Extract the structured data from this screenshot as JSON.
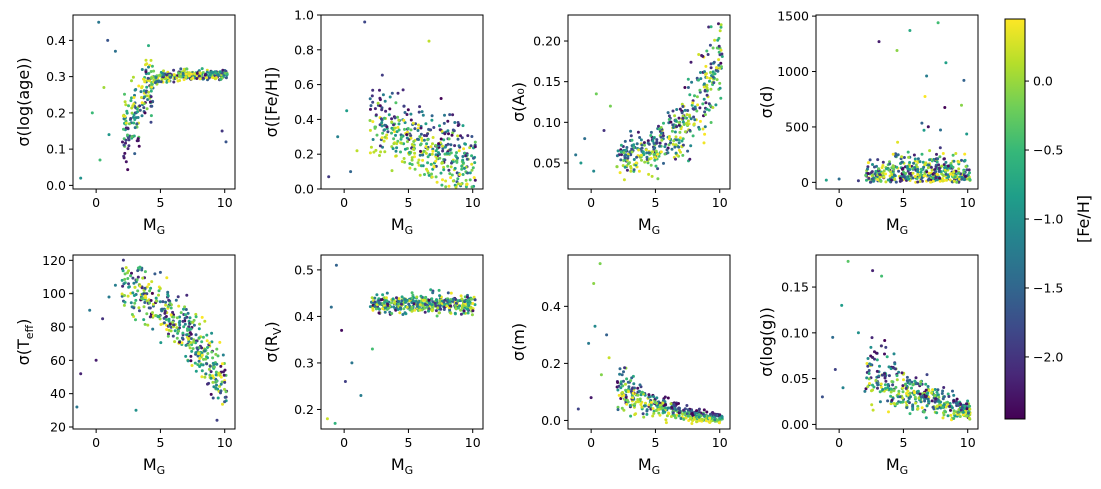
{
  "colorbar": {
    "label": "[Fe/H]",
    "range": [
      -2.45,
      0.45
    ],
    "ticks": [
      0.0,
      -0.5,
      -1.0,
      -1.5,
      -2.0
    ],
    "tick_labels": [
      "0.0",
      "−0.5",
      "−1.0",
      "−1.5",
      "−2.0"
    ],
    "colormap_stops": [
      "#440154",
      "#482878",
      "#3e4989",
      "#31688e",
      "#26828e",
      "#1f9e89",
      "#35b779",
      "#6ece58",
      "#b5de2b",
      "#fde725"
    ]
  },
  "chart_data": [
    {
      "type": "scatter",
      "id": "age",
      "xlabel": "M_G",
      "ylabel": "σ(log(age))",
      "xlim": [
        -1.8,
        10.8
      ],
      "ylim": [
        -0.01,
        0.47
      ],
      "xticks": [
        0,
        5,
        10
      ],
      "xtick_labels": [
        "0",
        "5",
        "10"
      ],
      "yticks": [
        0.0,
        0.1,
        0.2,
        0.3,
        0.4
      ],
      "ytick_labels": [
        "0.0",
        "0.1",
        "0.2",
        "0.3",
        "0.4"
      ],
      "trend": [
        [
          2.0,
          0.15
        ],
        [
          3.0,
          0.2
        ],
        [
          4.0,
          0.28
        ],
        [
          5.0,
          0.3
        ],
        [
          7.0,
          0.305
        ],
        [
          9.5,
          0.305
        ]
      ],
      "outliers": [
        [
          0.2,
          0.45
        ],
        [
          0.9,
          0.4
        ],
        [
          1.5,
          0.37
        ],
        [
          0.3,
          0.07
        ],
        [
          1.0,
          0.14
        ],
        [
          -1.2,
          0.02
        ],
        [
          -0.3,
          0.2
        ],
        [
          9.8,
          0.15
        ],
        [
          10.1,
          0.12
        ],
        [
          0.6,
          0.27
        ]
      ]
    },
    {
      "type": "scatter",
      "id": "feh",
      "xlabel": "M_G",
      "ylabel": "σ([Fe/H])",
      "xlim": [
        -1.8,
        10.8
      ],
      "ylim": [
        0.0,
        1.0
      ],
      "xticks": [
        0,
        5,
        10
      ],
      "xtick_labels": [
        "0",
        "5",
        "10"
      ],
      "yticks": [
        0.0,
        0.2,
        0.4,
        0.6,
        0.8,
        1.0
      ],
      "ytick_labels": [
        "0.0",
        "0.2",
        "0.4",
        "0.6",
        "0.8",
        "1.0"
      ],
      "trend": [
        [
          2.5,
          0.4
        ],
        [
          4.0,
          0.35
        ],
        [
          6.0,
          0.28
        ],
        [
          8.0,
          0.2
        ],
        [
          10.0,
          0.15
        ]
      ],
      "outliers": [
        [
          1.6,
          0.96
        ],
        [
          0.2,
          0.45
        ],
        [
          -0.5,
          0.3
        ],
        [
          0.5,
          0.1
        ],
        [
          -1.2,
          0.07
        ],
        [
          1.0,
          0.22
        ],
        [
          10.2,
          0.05
        ],
        [
          6.6,
          0.85
        ]
      ]
    },
    {
      "type": "scatter",
      "id": "a0",
      "xlabel": "M_G",
      "ylabel": "σ(A₀)",
      "xlim": [
        -1.8,
        10.8
      ],
      "ylim": [
        0.018,
        0.232
      ],
      "xticks": [
        0,
        5,
        10
      ],
      "xtick_labels": [
        "0",
        "5",
        "10"
      ],
      "yticks": [
        0.05,
        0.1,
        0.15,
        0.2
      ],
      "ytick_labels": [
        "0.05",
        "0.10",
        "0.15",
        "0.20"
      ],
      "trend": [
        [
          2.5,
          0.055
        ],
        [
          4.0,
          0.06
        ],
        [
          5.0,
          0.067
        ],
        [
          6.0,
          0.078
        ],
        [
          7.0,
          0.095
        ],
        [
          8.0,
          0.12
        ],
        [
          9.0,
          0.15
        ],
        [
          10.0,
          0.18
        ]
      ],
      "outliers": [
        [
          0.4,
          0.135
        ],
        [
          -0.5,
          0.08
        ],
        [
          -0.8,
          0.05
        ],
        [
          0.2,
          0.04
        ],
        [
          -1.2,
          0.06
        ],
        [
          1.0,
          0.09
        ],
        [
          1.5,
          0.12
        ]
      ]
    },
    {
      "type": "scatter",
      "id": "dist",
      "xlabel": "M_G",
      "ylabel": "σ(d)",
      "xlim": [
        -1.8,
        10.8
      ],
      "ylim": [
        -60,
        1510
      ],
      "xticks": [
        0,
        5,
        10
      ],
      "xtick_labels": [
        "0",
        "5",
        "10"
      ],
      "yticks": [
        0,
        500,
        1000,
        1500
      ],
      "ytick_labels": [
        "0",
        "500",
        "1000",
        "1500"
      ],
      "trend": [
        [
          2.0,
          10
        ],
        [
          4.0,
          60
        ],
        [
          6.0,
          80
        ],
        [
          8.0,
          90
        ],
        [
          10.0,
          60
        ]
      ],
      "outliers": [
        [
          5.5,
          1370
        ],
        [
          7.7,
          1440
        ],
        [
          3.1,
          1270
        ],
        [
          4.5,
          1190
        ],
        [
          8.3,
          1080
        ],
        [
          9.7,
          920
        ],
        [
          0.0,
          30
        ],
        [
          -1.0,
          20
        ],
        [
          1.5,
          15
        ],
        [
          6.8,
          960
        ]
      ]
    },
    {
      "type": "scatter",
      "id": "teff",
      "xlabel": "M_G",
      "ylabel": "σ(T_eff)",
      "xlim": [
        -1.8,
        10.8
      ],
      "ylim": [
        18.8,
        123.2
      ],
      "xticks": [
        0,
        5,
        10
      ],
      "xtick_labels": [
        "0",
        "5",
        "10"
      ],
      "yticks": [
        20,
        40,
        60,
        80,
        100,
        120
      ],
      "ytick_labels": [
        "20",
        "40",
        "60",
        "80",
        "100",
        "120"
      ],
      "trend": [
        [
          2.0,
          108
        ],
        [
          3.0,
          103
        ],
        [
          4.0,
          97
        ],
        [
          5.0,
          92
        ],
        [
          6.0,
          85
        ],
        [
          7.0,
          78
        ],
        [
          8.0,
          68
        ],
        [
          9.0,
          58
        ],
        [
          10.0,
          45
        ]
      ],
      "outliers": [
        [
          -1.5,
          32
        ],
        [
          -1.2,
          52
        ],
        [
          -0.5,
          90
        ],
        [
          0.0,
          60
        ],
        [
          1.5,
          105
        ],
        [
          3.1,
          30
        ],
        [
          9.4,
          24
        ],
        [
          0.5,
          85
        ],
        [
          1.0,
          98
        ]
      ]
    },
    {
      "type": "scatter",
      "id": "rv",
      "xlabel": "M_G",
      "ylabel": "σ(R_V)",
      "xlim": [
        -1.8,
        10.8
      ],
      "ylim": [
        0.158,
        0.532
      ],
      "xticks": [
        0,
        5,
        10
      ],
      "xtick_labels": [
        "0",
        "5",
        "10"
      ],
      "yticks": [
        0.2,
        0.3,
        0.4,
        0.5
      ],
      "ytick_labels": [
        "0.2",
        "0.3",
        "0.4",
        "0.5"
      ],
      "trend": [
        [
          2.5,
          0.425
        ],
        [
          5.0,
          0.428
        ],
        [
          7.5,
          0.428
        ],
        [
          10.0,
          0.425
        ]
      ],
      "outliers": [
        [
          -0.6,
          0.51
        ],
        [
          -1.3,
          0.18
        ],
        [
          -0.7,
          0.17
        ],
        [
          1.3,
          0.23
        ],
        [
          -0.2,
          0.37
        ],
        [
          0.6,
          0.3
        ],
        [
          2.2,
          0.33
        ],
        [
          -1.0,
          0.42
        ],
        [
          0.1,
          0.26
        ]
      ]
    },
    {
      "type": "scatter",
      "id": "mass",
      "xlabel": "M_G",
      "ylabel": "σ(m)",
      "xlim": [
        -1.8,
        10.8
      ],
      "ylim": [
        -0.03,
        0.58
      ],
      "xticks": [
        0,
        5,
        10
      ],
      "xtick_labels": [
        "0",
        "5",
        "10"
      ],
      "yticks": [
        0.0,
        0.2,
        0.4
      ],
      "ytick_labels": [
        "0.0",
        "0.2",
        "0.4"
      ],
      "trend": [
        [
          2.5,
          0.11
        ],
        [
          3.5,
          0.08
        ],
        [
          5.0,
          0.055
        ],
        [
          6.5,
          0.035
        ],
        [
          8.0,
          0.02
        ],
        [
          10.0,
          0.01
        ]
      ],
      "outliers": [
        [
          0.7,
          0.55
        ],
        [
          0.2,
          0.48
        ],
        [
          0.3,
          0.33
        ],
        [
          -0.2,
          0.27
        ],
        [
          1.2,
          0.3
        ],
        [
          0.0,
          0.08
        ],
        [
          -1.0,
          0.04
        ],
        [
          1.4,
          0.22
        ],
        [
          0.8,
          0.16
        ]
      ]
    },
    {
      "type": "scatter",
      "id": "logg",
      "xlabel": "M_G",
      "ylabel": "σ(log(g))",
      "xlim": [
        -1.8,
        10.8
      ],
      "ylim": [
        -0.005,
        0.185
      ],
      "xticks": [
        0,
        5,
        10
      ],
      "xtick_labels": [
        "0",
        "5",
        "10"
      ],
      "yticks": [
        0.0,
        0.05,
        0.1,
        0.15
      ],
      "ytick_labels": [
        "0.00",
        "0.05",
        "0.10",
        "0.15"
      ],
      "trend": [
        [
          2.5,
          0.055
        ],
        [
          4.0,
          0.045
        ],
        [
          5.0,
          0.038
        ],
        [
          6.5,
          0.03
        ],
        [
          8.0,
          0.025
        ],
        [
          10.0,
          0.015
        ]
      ],
      "outliers": [
        [
          0.7,
          0.178
        ],
        [
          0.2,
          0.13
        ],
        [
          2.6,
          0.168
        ],
        [
          3.3,
          0.162
        ],
        [
          -0.5,
          0.095
        ],
        [
          -1.3,
          0.03
        ],
        [
          -0.3,
          0.06
        ],
        [
          0.3,
          0.04
        ],
        [
          1.5,
          0.1
        ]
      ]
    }
  ]
}
